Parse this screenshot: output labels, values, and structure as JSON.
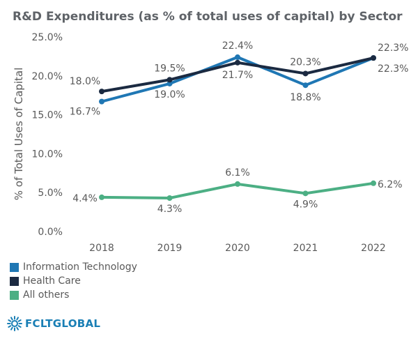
{
  "chart_data": {
    "type": "line",
    "title": "R&D Expenditures (as % of total uses of capital) by Sector",
    "ylabel": "% of Total Uses of Capital",
    "xlabel": "",
    "categories": [
      "2018",
      "2019",
      "2020",
      "2021",
      "2022"
    ],
    "ylim": [
      0,
      25
    ],
    "yticks": [
      "0.0%",
      "5.0%",
      "10.0%",
      "15.0%",
      "20.0%",
      "25.0%"
    ],
    "grid": false,
    "legend_position": "bottom-left",
    "series": [
      {
        "name": "Information Technology",
        "color": "#1f77b4",
        "values": [
          16.7,
          19.0,
          22.4,
          18.8,
          22.3
        ],
        "labels": [
          "16.7%",
          "19.0%",
          "22.4%",
          "18.8%",
          "22.3%"
        ]
      },
      {
        "name": "Health Care",
        "color": "#1b2a41",
        "values": [
          18.0,
          19.5,
          21.7,
          20.3,
          22.3
        ],
        "labels": [
          "18.0%",
          "19.5%",
          "21.7%",
          "20.3%",
          "22.3%"
        ]
      },
      {
        "name": "All others",
        "color": "#4caf84",
        "values": [
          4.4,
          4.3,
          6.1,
          4.9,
          6.2
        ],
        "labels": [
          "4.4%",
          "4.3%",
          "6.1%",
          "4.9%",
          "6.2%"
        ]
      }
    ]
  },
  "logo": {
    "text": "FCLTGLOBAL",
    "color": "#1a7fb5",
    "icon": "sunburst-logo-icon"
  }
}
